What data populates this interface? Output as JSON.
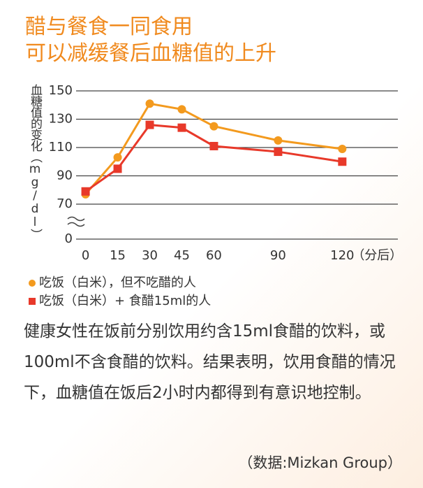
{
  "chart_data": {
    "type": "line",
    "title": "醋与餐食一同食用",
    "subtitle": "可以减缓餐后血糖值的上升",
    "y_label": "血糖值的变化（mg/dl）",
    "x_label": "（分后）",
    "x": [
      0,
      15,
      30,
      45,
      60,
      90,
      120
    ],
    "xlim": [
      -9,
      146
    ],
    "xticks": [
      0,
      15,
      30,
      45,
      60,
      90,
      120
    ],
    "ylim": [
      0,
      150
    ],
    "y_break": [
      0,
      70
    ],
    "yticks": [
      0,
      70,
      90,
      110,
      130,
      150
    ],
    "grid": true,
    "series": [
      {
        "name": "吃饭（白米），但不吃醋的人",
        "color": "#f39a1e",
        "marker": "circle",
        "values": [
          77,
          103,
          141,
          137,
          125,
          115,
          109
        ]
      },
      {
        "name": "吃饭（白米）+ 食醋15ml的人",
        "color": "#e8392a",
        "marker": "square",
        "values": [
          79,
          95,
          126,
          124,
          111,
          107,
          100
        ]
      }
    ]
  },
  "body": "健康女性在饭前分别饮用约含15ml食醋的饮料，或100ml不含食醋的饮料。结果表明，饮用食醋的情况下，血糖值在饭后2小时内都得到有意识地控制。",
  "source": "（数据:Mizkan Group）"
}
